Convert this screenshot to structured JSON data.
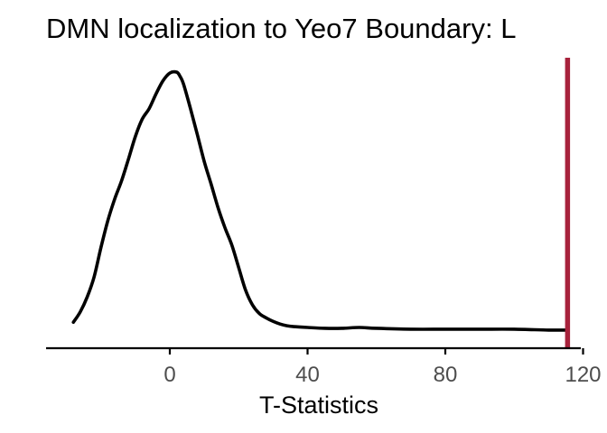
{
  "chart_data": {
    "type": "area",
    "title": "DMN localization to Yeo7 Boundary: L",
    "xlabel": "T-Statistics",
    "ylabel": "",
    "xlim": [
      -38,
      122
    ],
    "ylim": [
      0,
      0.0325
    ],
    "x_ticks": [
      0,
      40,
      80,
      120
    ],
    "x_tick_labels": [
      "0",
      "40",
      "80",
      "120"
    ],
    "grid": false,
    "legend": "none",
    "density": {
      "x": [
        -28,
        -26,
        -24,
        -22,
        -20,
        -18,
        -16,
        -14,
        -12,
        -10,
        -8,
        -6,
        -4,
        -2,
        0,
        2,
        3,
        4,
        6,
        8,
        10,
        12,
        14,
        16,
        18,
        20,
        22,
        24,
        26,
        28,
        30,
        32,
        34,
        36,
        40,
        45,
        50,
        55,
        60,
        70,
        80,
        90,
        100,
        110,
        115.5
      ],
      "y": [
        0.0017,
        0.0029,
        0.0046,
        0.0069,
        0.0103,
        0.0134,
        0.0159,
        0.018,
        0.0205,
        0.0231,
        0.0251,
        0.0263,
        0.028,
        0.0295,
        0.0304,
        0.0305,
        0.03,
        0.0291,
        0.0263,
        0.0233,
        0.0202,
        0.0176,
        0.0149,
        0.0126,
        0.0106,
        0.008,
        0.0054,
        0.0037,
        0.0027,
        0.0022,
        0.0018,
        0.0015,
        0.0013,
        0.0012,
        0.0011,
        0.001,
        0.001,
        0.0011,
        0.001,
        0.0009,
        0.0009,
        0.0009,
        0.0009,
        0.0008,
        0.0008
      ],
      "color": "#000000"
    },
    "vline": {
      "x": 115.5,
      "color": "#a7223c"
    }
  }
}
